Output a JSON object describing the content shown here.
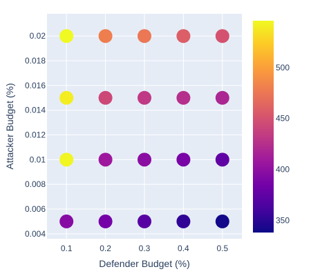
{
  "chart_data": {
    "type": "scatter",
    "title": "",
    "xlabel": "Defender Budget (%)",
    "ylabel": "Attacker Budget (%)",
    "x_ticks": [
      "0.1",
      "0.2",
      "0.3",
      "0.4",
      "0.5"
    ],
    "y_ticks": [
      "0.004",
      "0.006",
      "0.008",
      "0.01",
      "0.012",
      "0.014",
      "0.016",
      "0.018",
      "0.02"
    ],
    "xlim": [
      0.05,
      0.55
    ],
    "ylim": [
      0.0036,
      0.0218
    ],
    "grid": true,
    "colorscale": "plasma",
    "colorbar": {
      "range": [
        338,
        546
      ],
      "ticks": [
        "350",
        "400",
        "450",
        "500"
      ]
    },
    "points": [
      {
        "x": 0.1,
        "y": 0.02,
        "value": 546
      },
      {
        "x": 0.2,
        "y": 0.02,
        "value": 480
      },
      {
        "x": 0.3,
        "y": 0.02,
        "value": 475
      },
      {
        "x": 0.4,
        "y": 0.02,
        "value": 458
      },
      {
        "x": 0.5,
        "y": 0.02,
        "value": 450
      },
      {
        "x": 0.1,
        "y": 0.015,
        "value": 540
      },
      {
        "x": 0.2,
        "y": 0.015,
        "value": 443
      },
      {
        "x": 0.3,
        "y": 0.015,
        "value": 432
      },
      {
        "x": 0.4,
        "y": 0.015,
        "value": 425
      },
      {
        "x": 0.5,
        "y": 0.015,
        "value": 418
      },
      {
        "x": 0.1,
        "y": 0.01,
        "value": 544
      },
      {
        "x": 0.2,
        "y": 0.01,
        "value": 408
      },
      {
        "x": 0.3,
        "y": 0.01,
        "value": 398
      },
      {
        "x": 0.4,
        "y": 0.01,
        "value": 388
      },
      {
        "x": 0.5,
        "y": 0.01,
        "value": 375
      },
      {
        "x": 0.1,
        "y": 0.005,
        "value": 396
      },
      {
        "x": 0.2,
        "y": 0.005,
        "value": 386
      },
      {
        "x": 0.3,
        "y": 0.005,
        "value": 370
      },
      {
        "x": 0.4,
        "y": 0.005,
        "value": 352
      },
      {
        "x": 0.5,
        "y": 0.005,
        "value": 340
      }
    ]
  }
}
